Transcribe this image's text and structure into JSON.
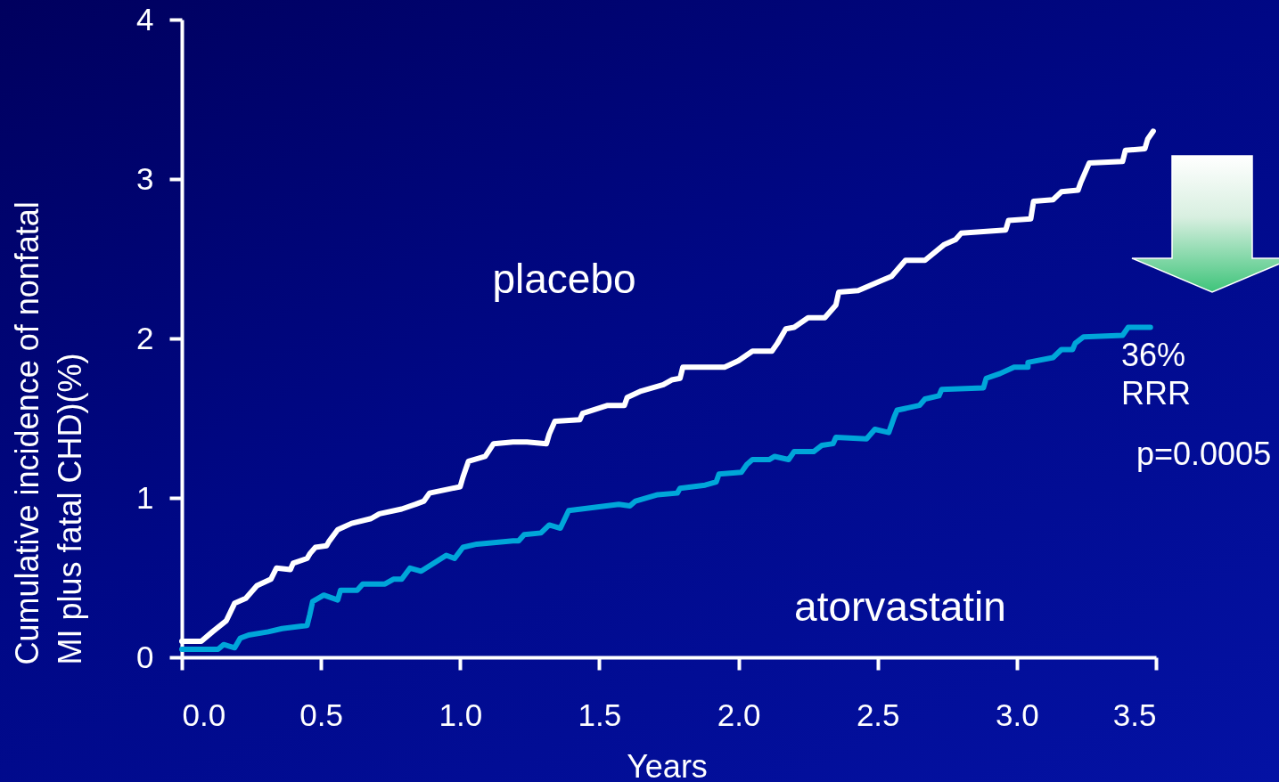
{
  "chart_data": {
    "type": "line",
    "xlabel": "Years",
    "ylabel": "Cumulative incidence of nonfatal MI plus fatal CHD)(%)",
    "xlim": [
      0,
      3.5
    ],
    "ylim": [
      0,
      4
    ],
    "xticks": [
      {
        "value": 0,
        "label": "0.0"
      },
      0.5,
      {
        "value": 1,
        "label": "1.0"
      },
      1.5,
      {
        "value": 2,
        "label": "2.0"
      },
      2.5,
      {
        "value": 3,
        "label": "3.0"
      },
      3.5
    ],
    "yticks": [
      0,
      1,
      2,
      3,
      4
    ],
    "annotations": [
      "36% RRR",
      "p=0.0005"
    ],
    "series": [
      {
        "name": "placebo",
        "color": "#ffffff",
        "x": [
          0,
          0.07,
          0.11,
          0.16,
          0.19,
          0.23,
          0.27,
          0.32,
          0.34,
          0.39,
          0.4,
          0.45,
          0.46,
          0.48,
          0.52,
          0.53,
          0.56,
          0.61,
          0.68,
          0.71,
          0.79,
          0.84,
          0.87,
          0.89,
          1,
          1.01,
          1.03,
          1.09,
          1.12,
          1.19,
          1.24,
          1.31,
          1.32,
          1.34,
          1.43,
          1.44,
          1.53,
          1.59,
          1.6,
          1.65,
          1.73,
          1.76,
          1.79,
          1.8,
          1.95,
          2,
          2.05,
          2.12,
          2.14,
          2.17,
          2.2,
          2.25,
          2.31,
          2.35,
          2.36,
          2.43,
          2.51,
          2.55,
          2.6,
          2.67,
          2.74,
          2.78,
          2.8,
          2.96,
          2.97,
          3.05,
          3.06,
          3.13,
          3.16,
          3.22,
          3.23,
          3.26,
          3.38,
          3.39,
          3.46,
          3.47,
          3.49
        ],
        "values": [
          0.1,
          0.1,
          0.16,
          0.23,
          0.34,
          0.37,
          0.45,
          0.49,
          0.56,
          0.55,
          0.59,
          0.62,
          0.65,
          0.69,
          0.7,
          0.73,
          0.8,
          0.84,
          0.87,
          0.9,
          0.93,
          0.96,
          0.98,
          1.03,
          1.07,
          1.13,
          1.23,
          1.26,
          1.34,
          1.35,
          1.35,
          1.34,
          1.4,
          1.48,
          1.49,
          1.53,
          1.58,
          1.58,
          1.63,
          1.67,
          1.71,
          1.74,
          1.75,
          1.82,
          1.82,
          1.86,
          1.92,
          1.92,
          1.97,
          2.06,
          2.07,
          2.13,
          2.13,
          2.21,
          2.29,
          2.3,
          2.36,
          2.39,
          2.49,
          2.49,
          2.59,
          2.62,
          2.66,
          2.68,
          2.74,
          2.75,
          2.86,
          2.87,
          2.92,
          2.93,
          2.98,
          3.1,
          3.11,
          3.18,
          3.19,
          3.25,
          3.3
        ]
      },
      {
        "name": "atorvastatin",
        "color": "#00a6d9",
        "x": [
          0,
          0.13,
          0.15,
          0.19,
          0.21,
          0.24,
          0.31,
          0.36,
          0.45,
          0.46,
          0.47,
          0.51,
          0.56,
          0.57,
          0.63,
          0.65,
          0.73,
          0.76,
          0.79,
          0.82,
          0.86,
          0.95,
          0.98,
          1.01,
          1.06,
          1.19,
          1.21,
          1.23,
          1.29,
          1.32,
          1.36,
          1.39,
          1.57,
          1.61,
          1.63,
          1.71,
          1.78,
          1.79,
          1.88,
          1.92,
          1.93,
          2.01,
          2.03,
          2.05,
          2.11,
          2.13,
          2.18,
          2.2,
          2.27,
          2.3,
          2.34,
          2.35,
          2.46,
          2.49,
          2.54,
          2.56,
          2.57,
          2.65,
          2.67,
          2.72,
          2.73,
          2.88,
          2.89,
          2.94,
          2.99,
          3.04,
          3.04,
          3.13,
          3.16,
          3.2,
          3.21,
          3.24,
          3.38,
          3.4,
          3.48
        ],
        "values": [
          0.05,
          0.05,
          0.08,
          0.06,
          0.12,
          0.14,
          0.16,
          0.18,
          0.2,
          0.27,
          0.35,
          0.39,
          0.36,
          0.42,
          0.42,
          0.46,
          0.46,
          0.49,
          0.49,
          0.56,
          0.54,
          0.64,
          0.62,
          0.69,
          0.71,
          0.73,
          0.73,
          0.77,
          0.78,
          0.83,
          0.81,
          0.92,
          0.96,
          0.95,
          0.98,
          1.02,
          1.03,
          1.06,
          1.08,
          1.1,
          1.15,
          1.16,
          1.21,
          1.24,
          1.24,
          1.26,
          1.24,
          1.29,
          1.29,
          1.33,
          1.34,
          1.38,
          1.37,
          1.43,
          1.41,
          1.51,
          1.55,
          1.58,
          1.62,
          1.64,
          1.68,
          1.69,
          1.75,
          1.78,
          1.82,
          1.82,
          1.85,
          1.88,
          1.93,
          1.93,
          1.97,
          2.01,
          2.02,
          2.07,
          2.07
        ]
      }
    ]
  }
}
